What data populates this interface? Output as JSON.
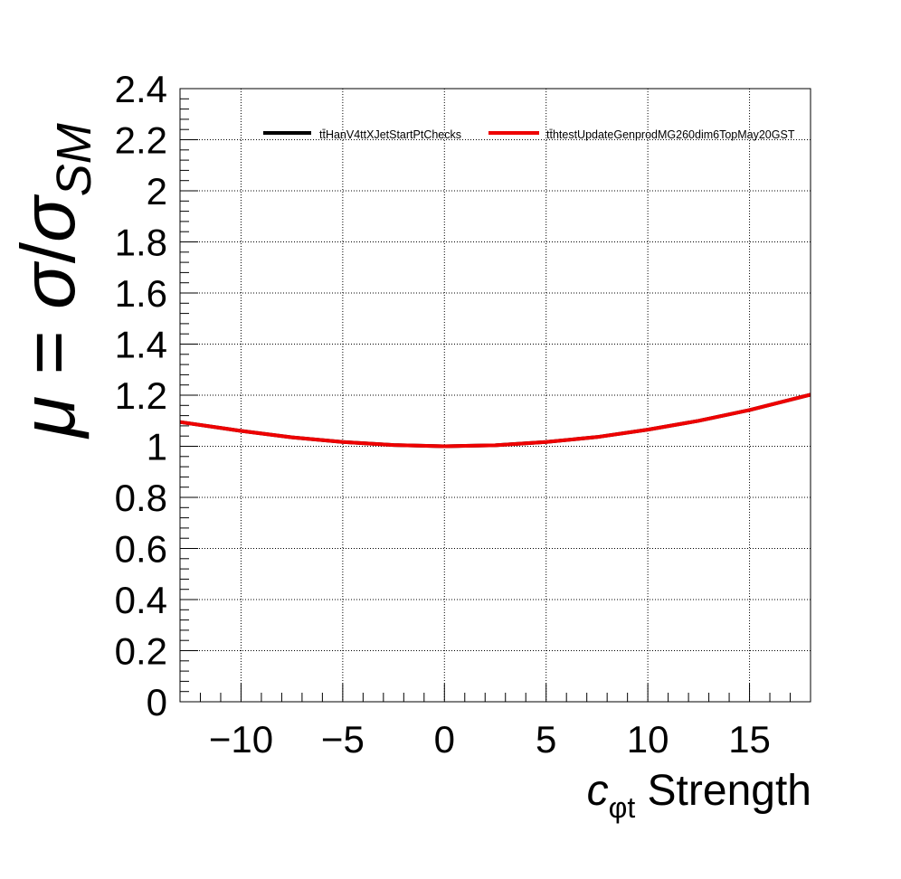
{
  "chart_data": {
    "type": "line",
    "title": "",
    "xlabel": {
      "main": "c",
      "sub": "φt",
      "suffix": " Strength"
    },
    "ylabel": {
      "mu": "μ",
      "eq": " = ",
      "sigma1": "σ",
      "slash": "/",
      "sigma2": "σ",
      "sub": "SM"
    },
    "xlim": [
      -13,
      18
    ],
    "ylim": [
      0,
      2.4
    ],
    "x_ticks": [
      -10,
      -5,
      0,
      5,
      10,
      15
    ],
    "x_tick_labels": [
      "−10",
      "−5",
      "0",
      "5",
      "10",
      "15"
    ],
    "y_ticks": [
      0,
      0.2,
      0.4,
      0.6,
      0.8,
      1,
      1.2,
      1.4,
      1.6,
      1.8,
      2,
      2.2,
      2.4
    ],
    "y_tick_labels": [
      "0",
      "0.2",
      "0.4",
      "0.6",
      "0.8",
      "1",
      "1.2",
      "1.4",
      "1.6",
      "1.8",
      "2",
      "2.2",
      "2.4"
    ],
    "grid": true,
    "legend_position": "top",
    "series": [
      {
        "name": "tt̄HanV4ttXJetStartPtChecks",
        "color": "#000000",
        "x": [
          -13,
          -10,
          -7.5,
          -5,
          -2.5,
          0,
          2.5,
          5,
          7.5,
          10,
          12.5,
          15,
          18
        ],
        "y": [
          1.095,
          1.06,
          1.035,
          1.017,
          1.005,
          1.0,
          1.004,
          1.017,
          1.036,
          1.065,
          1.1,
          1.142,
          1.202
        ]
      },
      {
        "name": "tt̄htestUpdateGenprodMG260dim6TopMay20GST",
        "color": "#ee0000",
        "x": [
          -13,
          -10,
          -7.5,
          -5,
          -2.5,
          0,
          2.5,
          5,
          7.5,
          10,
          12.5,
          15,
          18
        ],
        "y": [
          1.095,
          1.06,
          1.035,
          1.017,
          1.005,
          1.0,
          1.004,
          1.017,
          1.036,
          1.065,
          1.1,
          1.142,
          1.202
        ]
      }
    ]
  }
}
